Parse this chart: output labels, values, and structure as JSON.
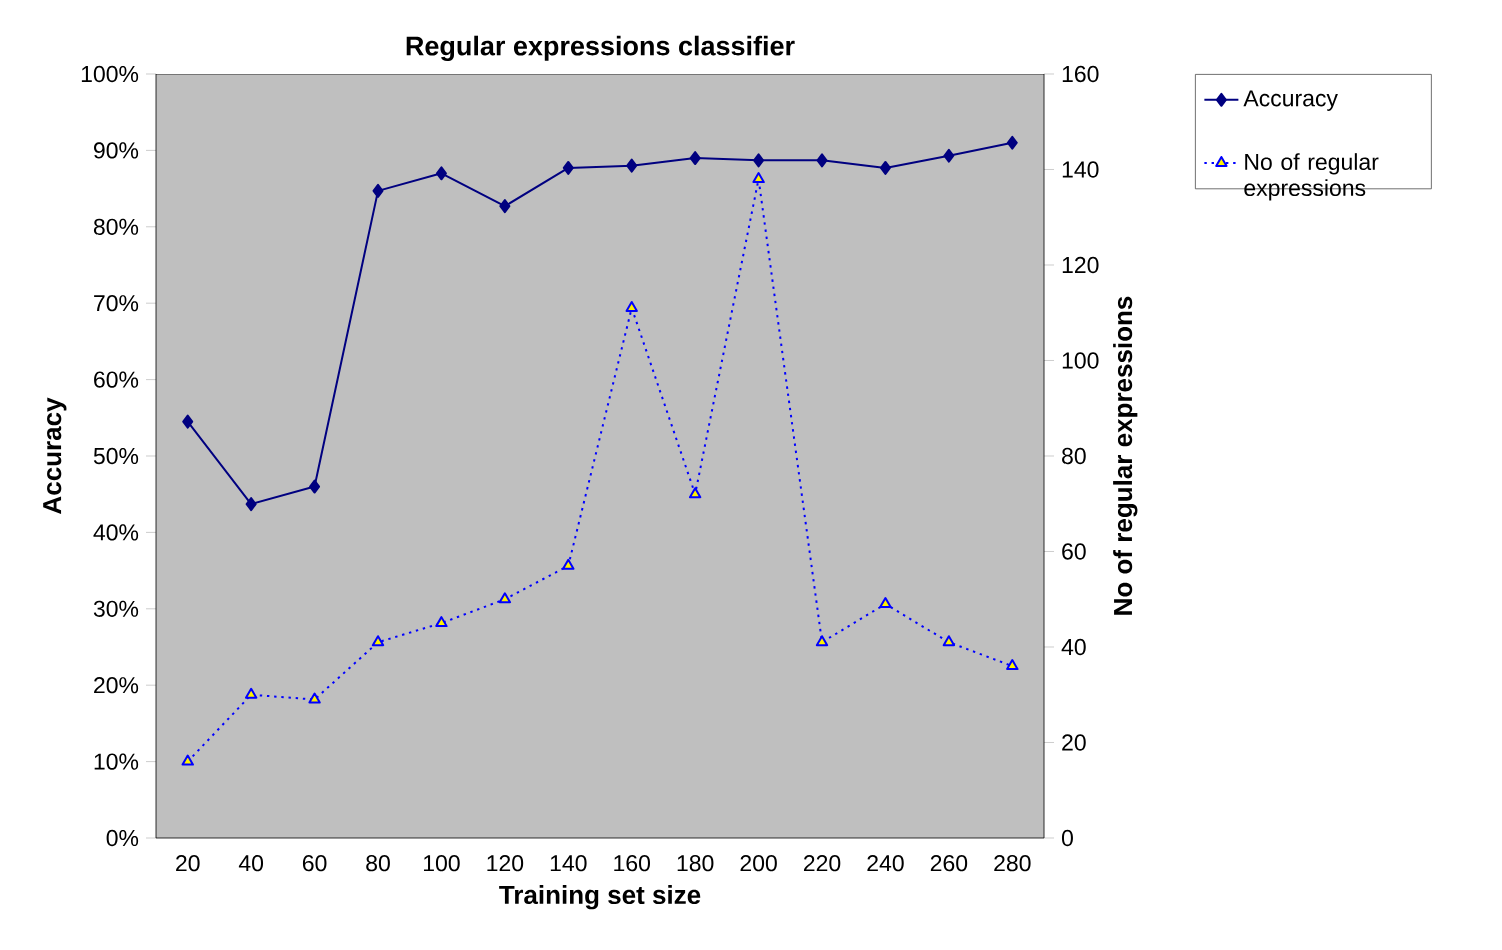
{
  "chart_data": {
    "type": "line",
    "title": "Regular expressions classifier",
    "xlabel": "Training set size",
    "ylabel": "Accuracy",
    "y2label": "No of regular expressions",
    "categories": [
      "20",
      "40",
      "60",
      "80",
      "100",
      "120",
      "140",
      "160",
      "180",
      "200",
      "220",
      "240",
      "260",
      "280"
    ],
    "series": [
      {
        "name": "Accuracy",
        "color": "#000080",
        "marker": "diamond",
        "line_style": "solid",
        "axis": "y",
        "values": [
          54.5,
          43.7,
          46,
          84.7,
          87,
          82.7,
          87.7,
          88,
          89,
          88.7,
          88.7,
          87.7,
          89.3,
          91
        ]
      },
      {
        "name": "No of regular expressions",
        "color": "#0000ff",
        "marker": "triangle",
        "line_style": "dotted",
        "axis": "y2",
        "values": [
          16,
          30,
          29,
          41,
          45,
          50,
          57,
          111,
          72,
          138,
          41,
          49,
          41,
          36
        ]
      }
    ],
    "ylim": [
      0,
      100
    ],
    "yticks": [
      {
        "value": 0,
        "label": "0%"
      },
      {
        "value": 10,
        "label": "10%"
      },
      {
        "value": 20,
        "label": "20%"
      },
      {
        "value": 30,
        "label": "30%"
      },
      {
        "value": 40,
        "label": "40%"
      },
      {
        "value": 50,
        "label": "50%"
      },
      {
        "value": 60,
        "label": "60%"
      },
      {
        "value": 70,
        "label": "70%"
      },
      {
        "value": 80,
        "label": "80%"
      },
      {
        "value": 90,
        "label": "90%"
      },
      {
        "value": 100,
        "label": "100%"
      }
    ],
    "y2lim": [
      0,
      160
    ],
    "y2ticks": [
      0,
      20,
      40,
      60,
      80,
      100,
      120,
      140,
      160
    ],
    "legend": "top right"
  }
}
